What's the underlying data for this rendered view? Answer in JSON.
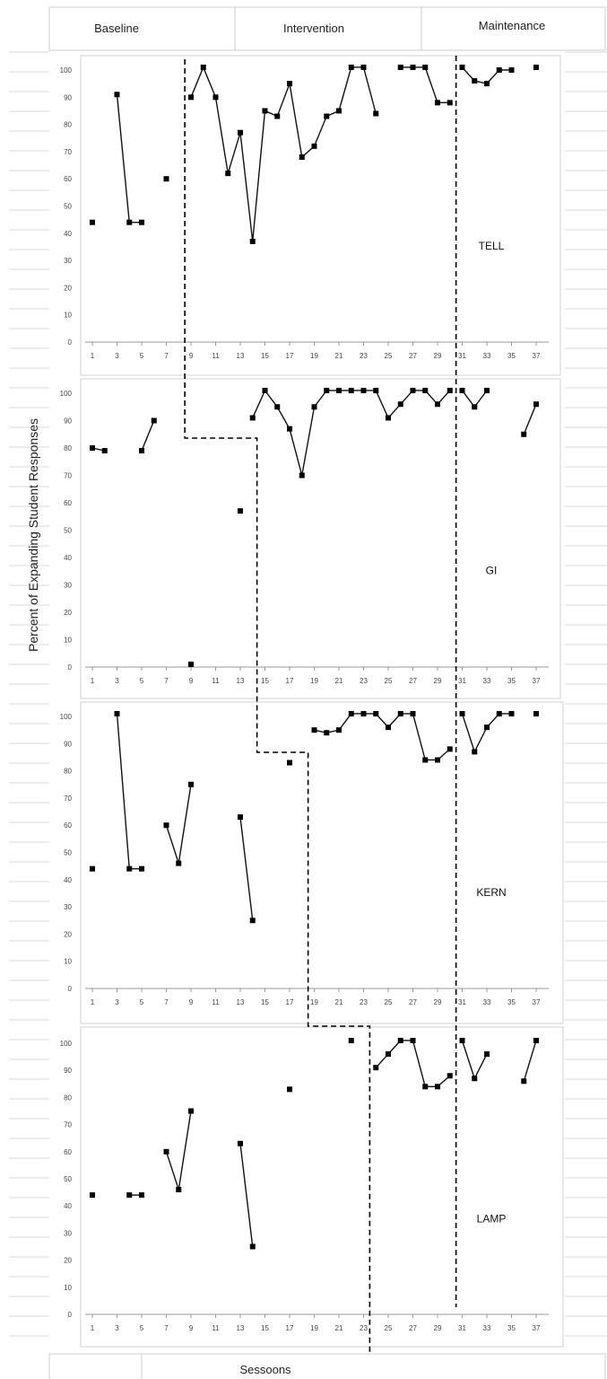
{
  "phase_headers": [
    "Baseline",
    "Intervention",
    "Maintenance"
  ],
  "ylabel": "Percent of Expanding Student Responses",
  "xlabel": "Sessoons",
  "chart_data": [
    {
      "type": "line",
      "panel_label": "TELL",
      "ylim": [
        0,
        100
      ],
      "xlim": [
        1,
        37
      ],
      "x_ticks": [
        1,
        3,
        5,
        7,
        9,
        11,
        13,
        15,
        17,
        19,
        21,
        23,
        25,
        27,
        29,
        31,
        33,
        35,
        37
      ],
      "y_ticks": [
        0,
        10,
        20,
        30,
        40,
        50,
        60,
        70,
        80,
        90,
        100
      ],
      "phase_change_x": [
        8.5,
        30.5
      ],
      "segments": [
        {
          "x": [
            1
          ],
          "y": [
            44
          ]
        },
        {
          "x": [
            3,
            4,
            5
          ],
          "y": [
            91,
            44,
            44
          ]
        },
        {
          "x": [
            7
          ],
          "y": [
            60
          ]
        },
        {
          "x": [
            9,
            10,
            11,
            12,
            13,
            14,
            15,
            16,
            17,
            18,
            19,
            20,
            21,
            22,
            23,
            24
          ],
          "y": [
            90,
            101,
            90,
            62,
            77,
            37,
            85,
            83,
            95,
            68,
            72,
            83,
            85,
            101,
            101,
            84
          ]
        },
        {
          "x": [
            26,
            27,
            28,
            29,
            30
          ],
          "y": [
            101,
            101,
            101,
            88,
            88
          ]
        },
        {
          "x": [
            31,
            32,
            33,
            34,
            35
          ],
          "y": [
            101,
            96,
            95,
            100,
            100
          ]
        },
        {
          "x": [
            37
          ],
          "y": [
            101
          ]
        }
      ]
    },
    {
      "type": "line",
      "panel_label": "GI",
      "ylim": [
        0,
        100
      ],
      "xlim": [
        1,
        37
      ],
      "x_ticks": [
        1,
        3,
        5,
        7,
        9,
        11,
        13,
        15,
        17,
        19,
        21,
        23,
        25,
        27,
        29,
        31,
        33,
        35,
        37
      ],
      "y_ticks": [
        0,
        10,
        20,
        30,
        40,
        50,
        60,
        70,
        80,
        90,
        100
      ],
      "phase_change_x": [
        14.5,
        30.5
      ],
      "segments": [
        {
          "x": [
            1,
            2
          ],
          "y": [
            80,
            79
          ]
        },
        {
          "x": [
            5,
            6
          ],
          "y": [
            79,
            90
          ]
        },
        {
          "x": [
            9
          ],
          "y": [
            1
          ]
        },
        {
          "x": [
            13
          ],
          "y": [
            57
          ]
        },
        {
          "x": [
            14,
            15,
            16,
            17,
            18,
            19,
            20,
            21,
            22,
            23,
            24,
            25,
            26,
            27,
            28,
            29,
            30
          ],
          "y": [
            91,
            101,
            95,
            87,
            70,
            95,
            101,
            101,
            101,
            101,
            101,
            91,
            96,
            101,
            101,
            96,
            101
          ]
        },
        {
          "x": [
            31,
            32,
            33
          ],
          "y": [
            101,
            95,
            101
          ]
        },
        {
          "x": [
            36,
            37
          ],
          "y": [
            85,
            96
          ]
        }
      ]
    },
    {
      "type": "line",
      "panel_label": "KERN",
      "ylim": [
        0,
        100
      ],
      "xlim": [
        1,
        37
      ],
      "x_ticks": [
        1,
        3,
        5,
        7,
        9,
        11,
        13,
        15,
        17,
        19,
        21,
        23,
        25,
        27,
        29,
        31,
        33,
        35,
        37
      ],
      "y_ticks": [
        0,
        10,
        20,
        30,
        40,
        50,
        60,
        70,
        80,
        90,
        100
      ],
      "phase_change_x": [
        18.5,
        30.5
      ],
      "segments": [
        {
          "x": [
            1
          ],
          "y": [
            44
          ]
        },
        {
          "x": [
            3,
            4,
            5
          ],
          "y": [
            101,
            44,
            44
          ]
        },
        {
          "x": [
            7,
            8,
            9
          ],
          "y": [
            60,
            46,
            75
          ]
        },
        {
          "x": [
            13,
            14
          ],
          "y": [
            63,
            25
          ]
        },
        {
          "x": [
            17
          ],
          "y": [
            83
          ]
        },
        {
          "x": [
            19,
            20,
            21,
            22,
            23,
            24,
            25,
            26,
            27,
            28,
            29,
            30
          ],
          "y": [
            95,
            94,
            95,
            101,
            101,
            101,
            96,
            101,
            101,
            84,
            84,
            88
          ]
        },
        {
          "x": [
            31,
            32,
            33,
            34,
            35
          ],
          "y": [
            101,
            87,
            96,
            101,
            101
          ]
        },
        {
          "x": [
            37
          ],
          "y": [
            101
          ]
        }
      ]
    },
    {
      "type": "line",
      "panel_label": "LAMP",
      "ylim": [
        0,
        100
      ],
      "xlim": [
        1,
        37
      ],
      "x_ticks": [
        1,
        3,
        5,
        7,
        9,
        11,
        13,
        15,
        17,
        19,
        21,
        23,
        25,
        27,
        29,
        31,
        33,
        35,
        37
      ],
      "y_ticks": [
        0,
        10,
        20,
        30,
        40,
        50,
        60,
        70,
        80,
        90,
        100
      ],
      "phase_change_x": [
        23.5,
        30.5
      ],
      "segments": [
        {
          "x": [
            1
          ],
          "y": [
            44
          ]
        },
        {
          "x": [
            4,
            5
          ],
          "y": [
            44,
            44
          ]
        },
        {
          "x": [
            7,
            8,
            9
          ],
          "y": [
            60,
            46,
            75
          ]
        },
        {
          "x": [
            13,
            14
          ],
          "y": [
            63,
            25
          ]
        },
        {
          "x": [
            17
          ],
          "y": [
            83
          ]
        },
        {
          "x": [
            22
          ],
          "y": [
            101
          ]
        },
        {
          "x": [
            24,
            25,
            26,
            27,
            28,
            29,
            30
          ],
          "y": [
            91,
            96,
            101,
            101,
            84,
            84,
            88
          ]
        },
        {
          "x": [
            31,
            32,
            33
          ],
          "y": [
            101,
            87,
            96
          ]
        },
        {
          "x": [
            36,
            37
          ],
          "y": [
            86,
            101
          ]
        }
      ]
    }
  ]
}
